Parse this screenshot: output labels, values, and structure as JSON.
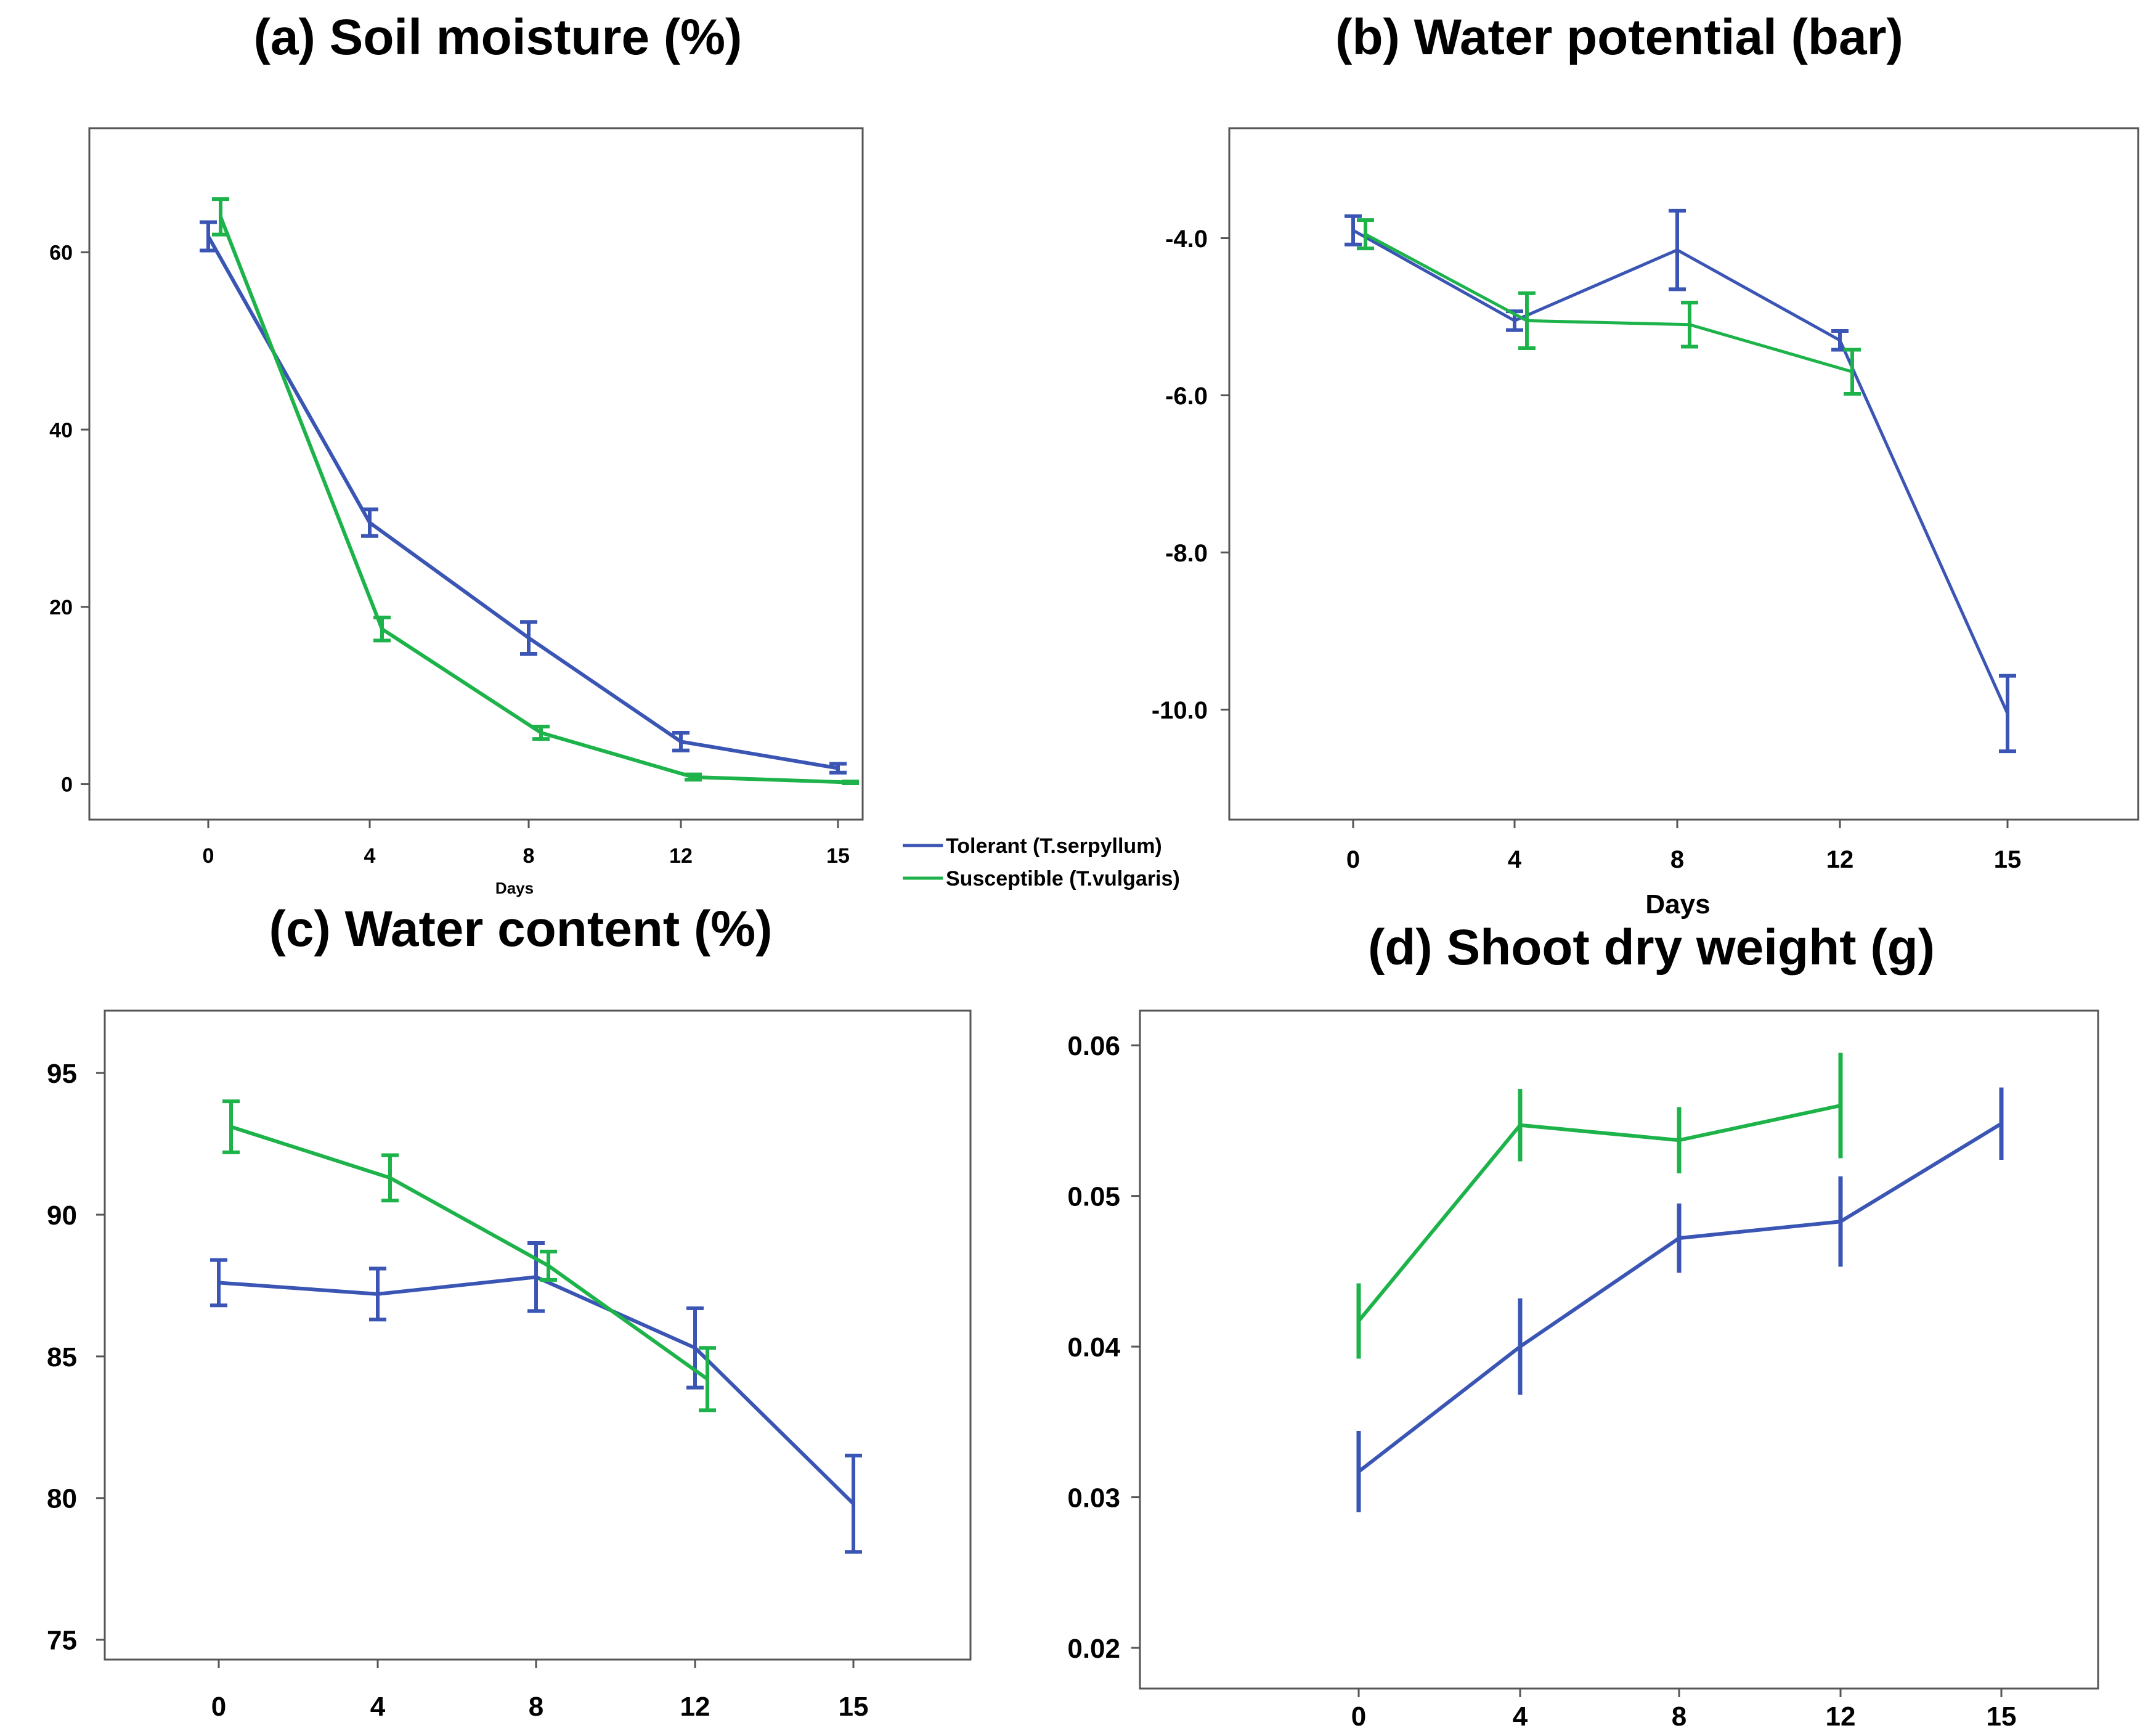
{
  "colors": {
    "tolerant": "#3A55B4",
    "susceptible": "#1DB34A"
  },
  "legend": {
    "tolerant_label": "Tolerant (T.serpyllum)",
    "susceptible_label": "Susceptible (T.vulgaris)"
  },
  "chart_data": [
    {
      "type": "line",
      "title": "(a) Soil moisture (%)",
      "xlabel": "Days",
      "ylabel": "",
      "categories": [
        "0",
        "4",
        "8",
        "12",
        "15"
      ],
      "ylim": [
        -4,
        74
      ],
      "yticks": [
        0,
        20,
        40,
        60
      ],
      "ytick_labels": [
        "0",
        "20",
        "40",
        "60"
      ],
      "series": [
        {
          "name": "Tolerant (T.serpyllum)",
          "values": [
            61.8,
            29.5,
            16.5,
            4.8,
            1.8
          ],
          "errors": [
            1.6,
            1.5,
            1.8,
            1.0,
            0.5
          ]
        },
        {
          "name": "Susceptible (T.vulgaris)",
          "values": [
            64.0,
            17.5,
            5.8,
            0.8,
            0.2
          ],
          "errors": [
            2.0,
            1.3,
            0.7,
            0.3,
            0.1
          ]
        }
      ]
    },
    {
      "type": "line",
      "title": "(b) Water potential (bar)",
      "xlabel": "Days",
      "ylabel": "",
      "categories": [
        "0",
        "4",
        "8",
        "12",
        "15"
      ],
      "ylim": [
        -11.4,
        -2.6
      ],
      "yticks": [
        -4,
        -6,
        -8,
        -10
      ],
      "ytick_labels": [
        "-4.0",
        "-6.0",
        "-8.0",
        "-10.0"
      ],
      "series": [
        {
          "name": "Tolerant (T.serpyllum)",
          "values": [
            -3.9,
            -5.05,
            -4.15,
            -5.3,
            -10.05
          ],
          "errors": [
            0.18,
            0.12,
            0.5,
            0.12,
            0.48
          ]
        },
        {
          "name": "Susceptible (T.vulgaris)",
          "values": [
            -3.95,
            -5.05,
            -5.1,
            -5.7,
            null
          ],
          "errors": [
            0.18,
            0.35,
            0.28,
            0.28,
            null
          ]
        }
      ]
    },
    {
      "type": "line",
      "title": "(c) Water content (%)",
      "xlabel": "",
      "ylabel": "",
      "categories": [
        "0",
        "4",
        "8",
        "12",
        "15"
      ],
      "ylim": [
        74.3,
        97.2
      ],
      "yticks": [
        75,
        80,
        85,
        90,
        95
      ],
      "ytick_labels": [
        "75",
        "80",
        "85",
        "90",
        "95"
      ],
      "series": [
        {
          "name": "Tolerant (T.serpyllum)",
          "values": [
            87.6,
            87.2,
            87.8,
            85.3,
            79.8
          ],
          "errors": [
            0.8,
            0.9,
            1.2,
            1.4,
            1.7
          ]
        },
        {
          "name": "Susceptible (T.vulgaris)",
          "values": [
            93.1,
            91.3,
            88.2,
            84.2,
            null
          ],
          "errors": [
            0.9,
            0.8,
            0.5,
            1.1,
            null
          ]
        }
      ]
    },
    {
      "type": "line",
      "title": "(d) Shoot dry weight (g)",
      "xlabel": "",
      "ylabel": "",
      "categories": [
        "0",
        "4",
        "8",
        "12",
        "15"
      ],
      "ylim": [
        0.0173,
        0.0623
      ],
      "yticks": [
        0.02,
        0.03,
        0.04,
        0.05,
        0.06
      ],
      "ytick_labels": [
        "0.02",
        "0.03",
        "0.04",
        "0.05",
        "0.06"
      ],
      "series": [
        {
          "name": "Tolerant (T.serpyllum)",
          "values": [
            0.0317,
            0.04,
            0.0472,
            0.0483,
            0.0548
          ],
          "errors": [
            0.0027,
            0.0032,
            0.0023,
            0.003,
            0.0024
          ]
        },
        {
          "name": "Susceptible (T.vulgaris)",
          "values": [
            0.0417,
            0.0547,
            0.0537,
            0.056,
            null
          ],
          "errors": [
            0.0025,
            0.0024,
            0.0022,
            0.0035,
            null
          ]
        }
      ]
    }
  ]
}
